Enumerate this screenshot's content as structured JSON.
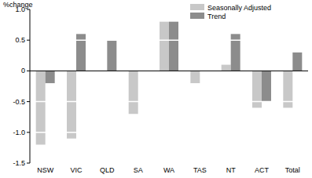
{
  "chart_data": {
    "type": "bar",
    "y_label": "%change",
    "categories": [
      "NSW",
      "VIC",
      "QLD",
      "SA",
      "WA",
      "TAS",
      "NT",
      "ACT",
      "Total"
    ],
    "series": [
      {
        "name": "Seasonally Adjusted",
        "color": "#c8c8c8",
        "values": [
          -1.2,
          -1.1,
          0,
          -0.7,
          0.8,
          -0.2,
          0.1,
          -0.6,
          -0.6
        ]
      },
      {
        "name": "Trend",
        "color": "#8c8c8c",
        "values": [
          -0.2,
          0.6,
          0.5,
          0,
          0.8,
          0,
          0.6,
          -0.5,
          0.3
        ]
      }
    ],
    "ylim": [
      -1.5,
      1.0
    ],
    "yticks": [
      -1.5,
      {
        "value": -1.0,
        "label": "-1.0"
      },
      -0.5,
      0,
      0.5,
      {
        "value": 1.0,
        "label": "1.0"
      }
    ],
    "grid": true,
    "legend": "top-right"
  }
}
